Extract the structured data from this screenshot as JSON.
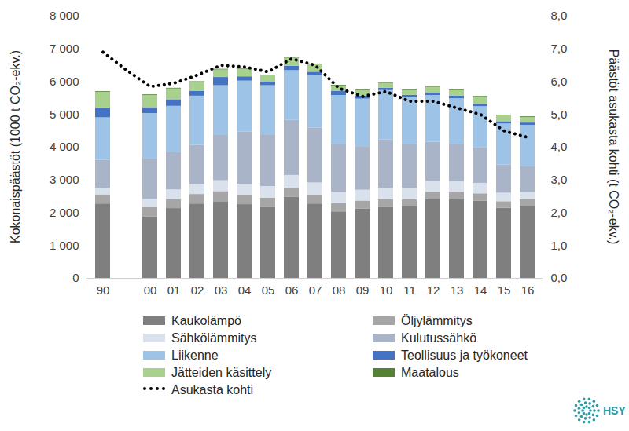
{
  "chart_data": {
    "type": "bar",
    "stacked": true,
    "grid": false,
    "categories": [
      "90",
      null,
      "00",
      "01",
      "02",
      "03",
      "04",
      "05",
      "06",
      "07",
      "08",
      "09",
      "10",
      "11",
      "12",
      "13",
      "14",
      "15",
      "16"
    ],
    "y_label": "Kokonaispäästöt (1000 t CO₂-ekv.)",
    "y2_label": "Päästöt asukasta kohti (t CO₂-ekv.)",
    "ylim": [
      0,
      8000
    ],
    "yticks": [
      0,
      {
        "value": 1000,
        "label": "1 000"
      },
      {
        "value": 2000,
        "label": "2 000"
      },
      {
        "value": 3000,
        "label": "3 000"
      },
      {
        "value": 4000,
        "label": "4 000"
      },
      {
        "value": 5000,
        "label": "5 000"
      },
      {
        "value": 6000,
        "label": "6 000"
      },
      {
        "value": 7000,
        "label": "7 000"
      },
      {
        "value": 8000,
        "label": "8 000"
      }
    ],
    "y2lim": [
      0,
      8
    ],
    "y2ticks": [
      {
        "value": 0,
        "label": "0,0"
      },
      {
        "value": 1,
        "label": "1,0"
      },
      {
        "value": 2,
        "label": "2,0"
      },
      {
        "value": 3,
        "label": "3,0"
      },
      {
        "value": 4,
        "label": "4,0"
      },
      {
        "value": 5,
        "label": "5,0"
      },
      {
        "value": 6,
        "label": "6,0"
      },
      {
        "value": 7,
        "label": "7,0"
      },
      {
        "value": 8,
        "label": "8,0"
      }
    ],
    "series": [
      {
        "name": "Kaukolämpö",
        "color": "#7f7f7f",
        "values": [
          2270,
          null,
          1880,
          2130,
          2270,
          2340,
          2250,
          2170,
          2470,
          2270,
          2030,
          2110,
          2170,
          2180,
          2410,
          2400,
          2360,
          2140,
          2200
        ]
      },
      {
        "name": "Öljylämmitys",
        "color": "#a6a6a6",
        "values": [
          280,
          null,
          280,
          270,
          290,
          310,
          290,
          280,
          290,
          270,
          250,
          250,
          230,
          220,
          220,
          220,
          220,
          200,
          200
        ]
      },
      {
        "name": "Sähkölämmitys",
        "color": "#d9e1ec",
        "values": [
          200,
          null,
          250,
          300,
          300,
          330,
          330,
          350,
          380,
          370,
          350,
          330,
          350,
          350,
          330,
          330,
          320,
          260,
          220
        ]
      },
      {
        "name": "Kulutussähkö",
        "color": "#aab4c8",
        "values": [
          850,
          null,
          1250,
          1150,
          1200,
          1400,
          1600,
          1580,
          1680,
          1680,
          1450,
          1330,
          1480,
          1330,
          1190,
          1130,
          1080,
          860,
          800
        ]
      },
      {
        "name": "Liikenne",
        "color": "#9dc3e6",
        "values": [
          1300,
          null,
          1370,
          1400,
          1500,
          1500,
          1550,
          1500,
          1520,
          1600,
          1500,
          1450,
          1500,
          1450,
          1430,
          1400,
          1260,
          1250,
          1250
        ]
      },
      {
        "name": "Teollisuus ja työkoneet",
        "color": "#4472c4",
        "values": [
          300,
          null,
          180,
          200,
          150,
          250,
          130,
          120,
          130,
          100,
          120,
          90,
          70,
          60,
          70,
          80,
          70,
          70,
          70
        ]
      },
      {
        "name": "Jätteiden käsittely",
        "color": "#a9d18e",
        "values": [
          480,
          null,
          370,
          330,
          270,
          230,
          230,
          180,
          250,
          230,
          170,
          170,
          150,
          140,
          180,
          170,
          220,
          180,
          170
        ]
      },
      {
        "name": "Maatalous",
        "color": "#548235",
        "values": [
          20,
          null,
          20,
          20,
          20,
          20,
          20,
          20,
          20,
          20,
          20,
          20,
          20,
          20,
          20,
          20,
          20,
          20,
          20
        ]
      },
      {
        "name": "Asukasta kohti",
        "type": "line",
        "axis": "y2",
        "color": "#000000",
        "line_style": "dotted",
        "values": [
          6.9,
          6.35,
          5.85,
          5.95,
          6.2,
          6.5,
          6.45,
          6.3,
          6.7,
          6.5,
          5.8,
          5.55,
          5.7,
          5.4,
          5.4,
          5.2,
          5.0,
          4.5,
          4.3
        ]
      }
    ],
    "annotations": [
      "HSY"
    ]
  }
}
